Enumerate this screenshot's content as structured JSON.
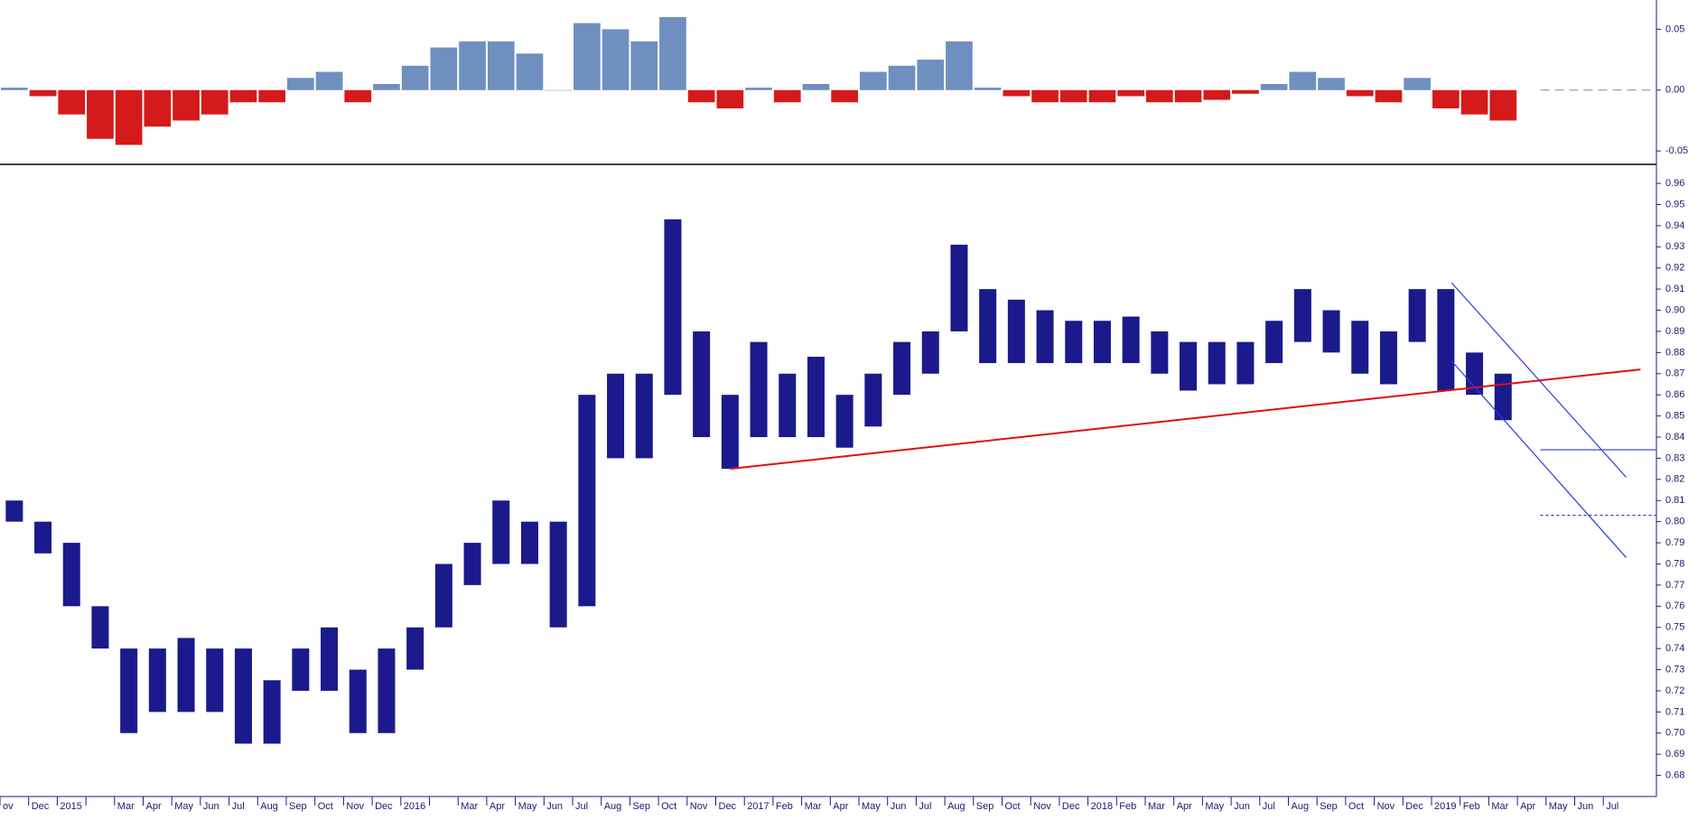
{
  "chart_data": [
    {
      "type": "bar",
      "colors": {
        "positive": "#6f8fc0",
        "negative": "#d41a1a"
      },
      "values": [
        0.002,
        -0.005,
        -0.02,
        -0.04,
        -0.045,
        -0.03,
        -0.025,
        -0.02,
        -0.01,
        -0.01,
        0.01,
        0.015,
        -0.01,
        0.005,
        0.02,
        0.035,
        0.04,
        0.04,
        0.03,
        0,
        0.055,
        0.05,
        0.04,
        0.06,
        -0.01,
        -0.015,
        0.002,
        -0.01,
        0.005,
        -0.01,
        0.015,
        0.02,
        0.025,
        0.04,
        0.002,
        -0.005,
        -0.01,
        -0.01,
        -0.01,
        -0.005,
        -0.01,
        -0.01,
        -0.008,
        -0.003,
        0.005,
        0.015,
        0.01,
        -0.005,
        -0.01,
        0.01,
        -0.015,
        -0.02,
        -0.025
      ],
      "ylim": [
        -0.061,
        0.074
      ],
      "yticks": [
        -0.05,
        {
          "value": 0,
          "label": "0.00"
        },
        0.05
      ]
    },
    {
      "type": "range",
      "color": "#1a1a8c",
      "categories": [
        "ov",
        "Dec",
        "2015",
        null,
        "Mar",
        "Apr",
        "May",
        "Jun",
        "Jul",
        "Aug",
        "Sep",
        "Oct",
        "Nov",
        "Dec",
        "2016",
        null,
        "Mar",
        "Apr",
        "May",
        "Jun",
        "Jul",
        "Aug",
        "Sep",
        "Oct",
        "Nov",
        "Dec",
        "2017",
        "Feb",
        "Mar",
        "Apr",
        "May",
        "Jun",
        "Jul",
        "Aug",
        "Sep",
        "Oct",
        "Nov",
        "Dec",
        "2018",
        "Feb",
        "Mar",
        "Apr",
        "May",
        "Jun",
        "Jul",
        "Aug",
        "Sep",
        "Oct",
        "Nov",
        "Dec",
        "2019",
        "Feb",
        "Mar",
        "Apr",
        "May",
        "Jun",
        "Jul"
      ],
      "series": [
        {
          "name": "high",
          "values": [
            0.81,
            0.8,
            0.79,
            0.76,
            0.74,
            0.74,
            0.745,
            0.74,
            0.74,
            0.725,
            0.74,
            0.75,
            0.73,
            0.74,
            0.75,
            0.78,
            0.79,
            0.81,
            0.8,
            0.8,
            0.86,
            0.87,
            0.87,
            0.943,
            0.89,
            0.86,
            0.885,
            0.87,
            0.878,
            0.86,
            0.87,
            0.885,
            0.89,
            0.931,
            0.91,
            0.905,
            0.9,
            0.895,
            0.895,
            0.897,
            0.89,
            0.885,
            0.885,
            0.885,
            0.895,
            0.91,
            0.9,
            0.895,
            0.89,
            0.91,
            0.91,
            0.88,
            0.87,
            null,
            null,
            null,
            null
          ]
        },
        {
          "name": "low",
          "values": [
            0.8,
            0.785,
            0.76,
            0.74,
            0.7,
            0.71,
            0.71,
            0.71,
            0.695,
            0.695,
            0.72,
            0.72,
            0.7,
            0.7,
            0.73,
            0.75,
            0.77,
            0.78,
            0.78,
            0.75,
            0.76,
            0.83,
            0.83,
            0.86,
            0.84,
            0.825,
            0.84,
            0.84,
            0.84,
            0.835,
            0.845,
            0.86,
            0.87,
            0.89,
            0.875,
            0.875,
            0.875,
            0.875,
            0.875,
            0.875,
            0.87,
            0.862,
            0.865,
            0.865,
            0.875,
            0.885,
            0.88,
            0.87,
            0.865,
            0.885,
            0.862,
            0.86,
            0.848,
            null,
            null,
            null,
            null
          ]
        }
      ],
      "ylim": [
        0.67,
        0.969
      ],
      "yticks": [
        0.68,
        0.69,
        {
          "value": 0.7,
          "label": "0.70"
        },
        0.71,
        0.72,
        0.73,
        0.74,
        0.75,
        0.76,
        0.77,
        0.78,
        0.79,
        {
          "value": 0.8,
          "label": "0.80"
        },
        0.81,
        0.82,
        0.83,
        0.84,
        0.85,
        0.86,
        0.87,
        0.88,
        0.89,
        {
          "value": 0.9,
          "label": "0.90"
        },
        0.91,
        0.92,
        0.93,
        0.94,
        0.95,
        0.96
      ],
      "trendlines": [
        {
          "color": "#e01010",
          "x": [
            25.5,
            57.3
          ],
          "y": [
            0.825,
            0.872
          ]
        },
        {
          "color": "#2a3adb",
          "x": [
            50.7,
            56.8
          ],
          "y": [
            0.913,
            0.821
          ]
        },
        {
          "color": "#2a3adb",
          "x": [
            50.7,
            56.8
          ],
          "y": [
            0.876,
            0.783
          ]
        },
        {
          "color": "#2a3adb",
          "x": [
            53.8,
            58
          ],
          "y": [
            0.834,
            0.834
          ]
        },
        {
          "color": "#2a3adb",
          "dashed": true,
          "x": [
            53.8,
            58
          ],
          "y": [
            0.803,
            0.803
          ]
        }
      ]
    }
  ]
}
